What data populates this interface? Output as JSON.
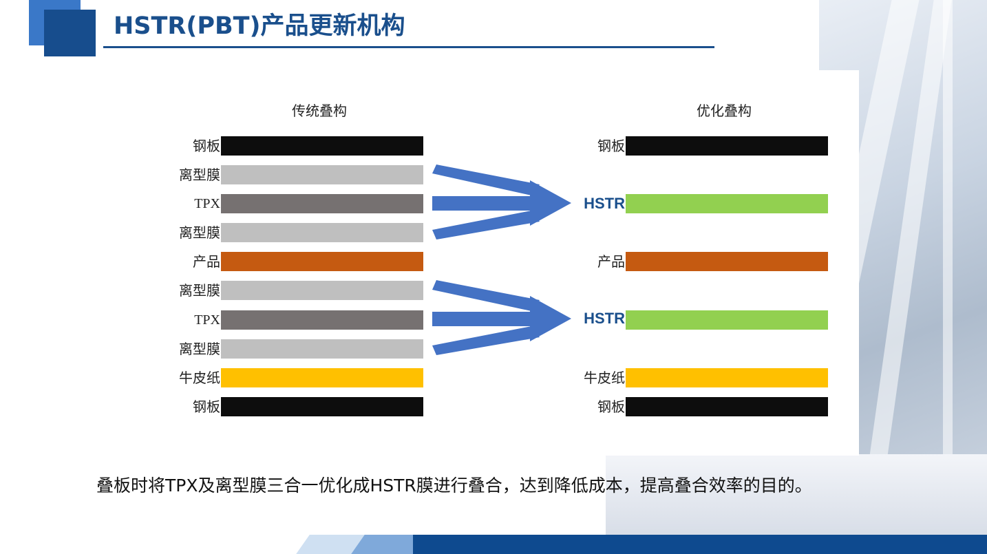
{
  "title": "HSTR(PBT)产品更新机构",
  "traditional": {
    "heading": "传统叠构",
    "layers": [
      {
        "label": "钢板",
        "color": "#0d0d0d"
      },
      {
        "label": "离型膜",
        "color": "#bfbfbf"
      },
      {
        "label": "TPX",
        "color": "#767171"
      },
      {
        "label": "离型膜",
        "color": "#bfbfbf"
      },
      {
        "label": "产品",
        "color": "#c55a11"
      },
      {
        "label": "离型膜",
        "color": "#bfbfbf"
      },
      {
        "label": "TPX",
        "color": "#767171"
      },
      {
        "label": "离型膜",
        "color": "#bfbfbf"
      },
      {
        "label": "牛皮纸",
        "color": "#ffc000"
      },
      {
        "label": "钢板",
        "color": "#0d0d0d"
      }
    ]
  },
  "optimized": {
    "heading": "优化叠构",
    "layers": [
      {
        "label": "钢板",
        "color": "#0d0d0d"
      },
      {
        "label": "HSTR",
        "color": "#92d050"
      },
      {
        "label": "产品",
        "color": "#c55a11"
      },
      {
        "label": "HSTR",
        "color": "#92d050"
      },
      {
        "label": "牛皮纸",
        "color": "#ffc000"
      },
      {
        "label": "钢板",
        "color": "#0d0d0d"
      }
    ]
  },
  "arrow_color": "#4472c4",
  "caption": "叠板时将TPX及离型膜三合一优化成HSTR膜进行叠合，达到降低成本，提高叠合效率的目的。"
}
